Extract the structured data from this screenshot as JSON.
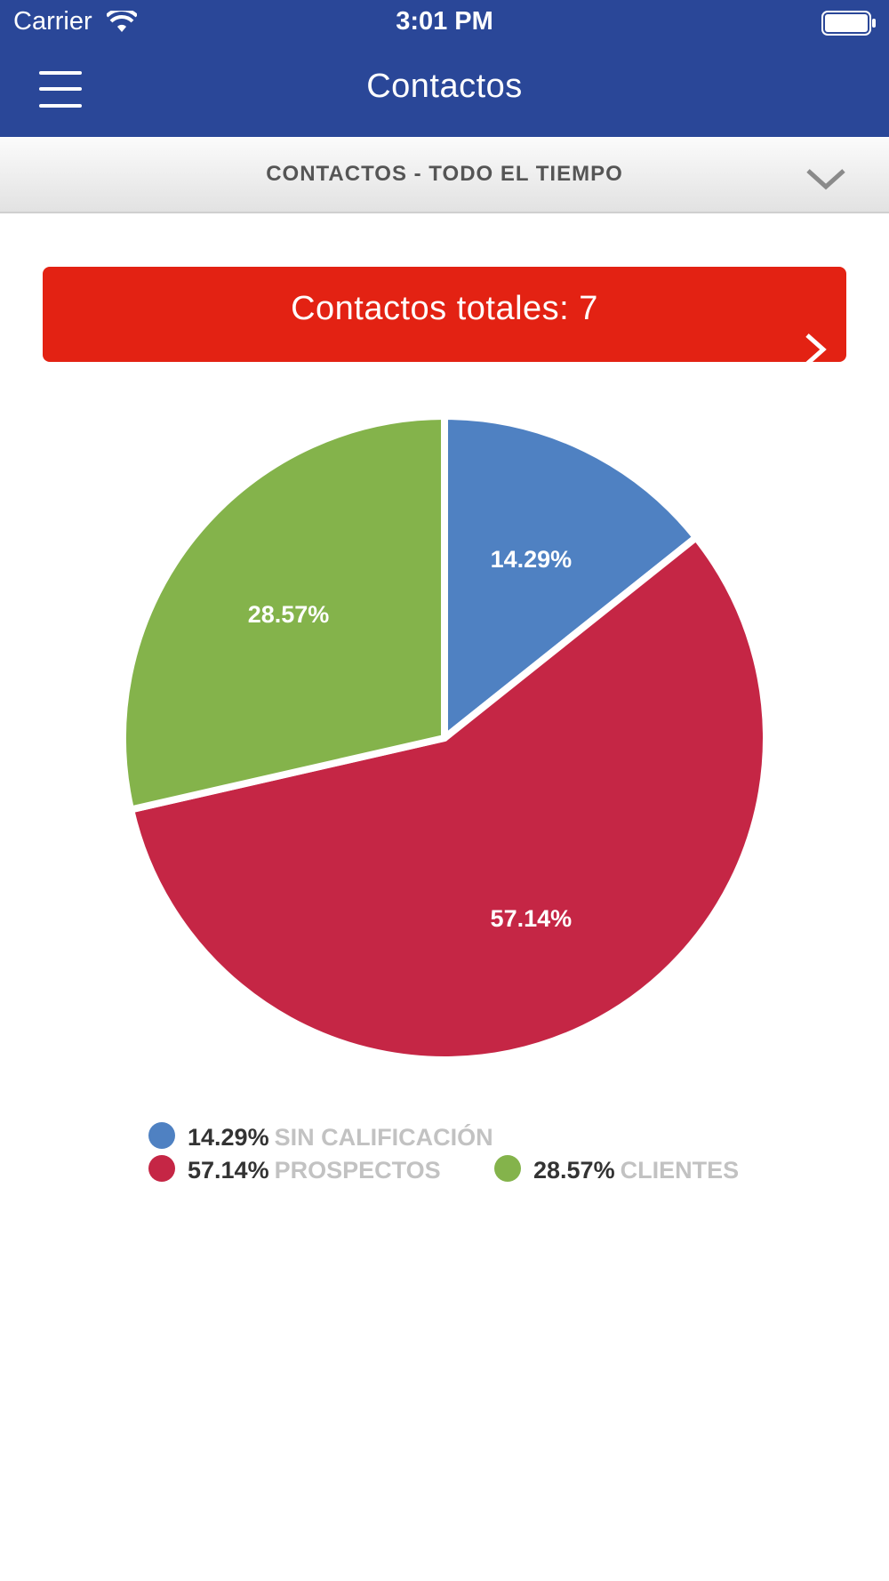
{
  "status_bar": {
    "carrier": "Carrier",
    "time": "3:01 PM"
  },
  "nav": {
    "title": "Contactos"
  },
  "filter": {
    "label": "CONTACTOS - TODO EL TIEMPO"
  },
  "total_banner": {
    "text": "Contactos totales: 7"
  },
  "colors": {
    "header_blue": "#2a4798",
    "banner_red": "#e32213"
  },
  "chart_data": {
    "type": "pie",
    "title": "",
    "slices": [
      {
        "label": "SIN CALIFICACIÓN",
        "value": 14.29,
        "display": "14.29%",
        "color": "#4f81c2"
      },
      {
        "label": "PROSPECTOS",
        "value": 57.14,
        "display": "57.14%",
        "color": "#c52645"
      },
      {
        "label": "CLIENTES",
        "value": 28.57,
        "display": "28.57%",
        "color": "#84b34b"
      }
    ],
    "legend": [
      {
        "pct": "14.29%",
        "name": "Sin calificación",
        "color": "#4f81c2"
      },
      {
        "pct": "57.14%",
        "name": "Prospectos",
        "color": "#c52645"
      },
      {
        "pct": "28.57%",
        "name": "Clientes",
        "color": "#84b34b"
      }
    ],
    "legend_position": "bottom"
  }
}
